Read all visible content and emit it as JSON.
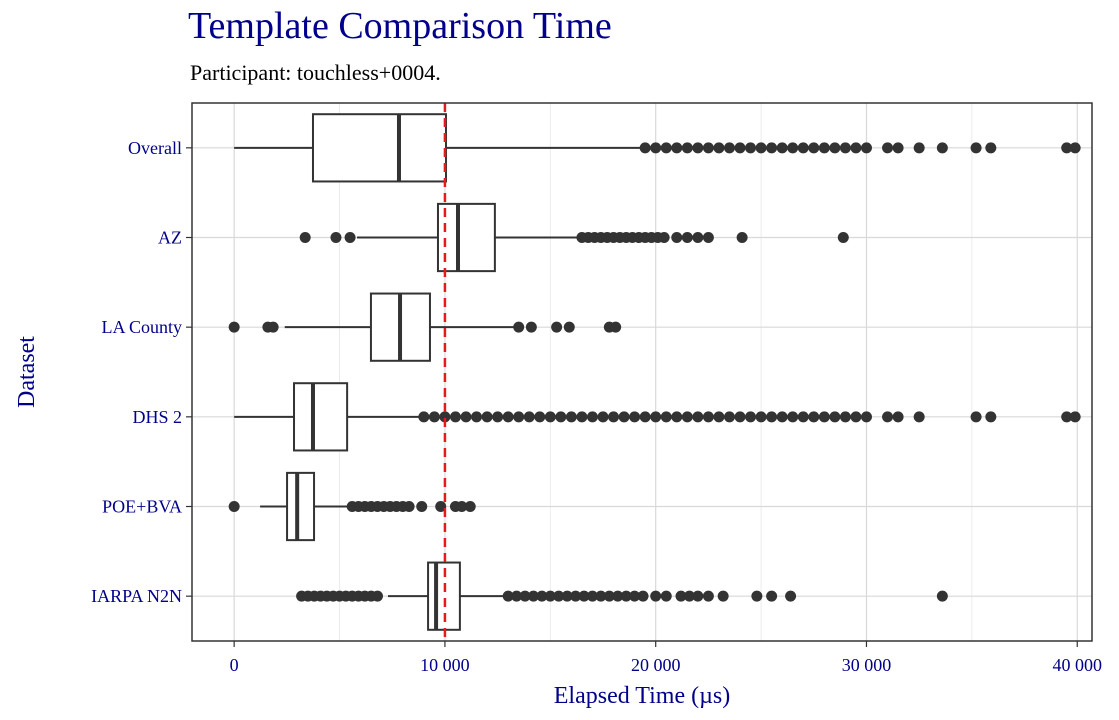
{
  "chart_data": {
    "type": "box",
    "title": "Template Comparison Time",
    "subtitle": "Participant: touchless+0004.",
    "x_label": "Elapsed Time (µs)",
    "y_label": "Dataset",
    "categories": [
      "Overall",
      "AZ",
      "LA County",
      "DHS 2",
      "POE+BVA",
      "IARPA N2N"
    ],
    "boxes": [
      {
        "whisker_low": 0,
        "q1": 3740,
        "median": 7820,
        "q3": 10050,
        "whisker_high": 19400,
        "outliers": [
          19500,
          20000,
          20500,
          21000,
          21500,
          22000,
          22500,
          23000,
          23500,
          24000,
          24500,
          25000,
          25500,
          26000,
          26500,
          27000,
          27500,
          28000,
          28500,
          29000,
          29500,
          30000,
          31000,
          31500,
          32500,
          33600,
          35200,
          35900,
          39500,
          39900
        ]
      },
      {
        "whisker_low": 5830,
        "q1": 9670,
        "median": 10620,
        "q3": 12370,
        "whisker_high": 16400,
        "outliers": [
          3370,
          4830,
          5500,
          16500,
          16800,
          17100,
          17400,
          17700,
          18000,
          18300,
          18600,
          18900,
          19200,
          19500,
          19800,
          20100,
          20400,
          21000,
          21500,
          22000,
          22500,
          24100,
          28900
        ]
      },
      {
        "whisker_low": 2400,
        "q1": 6490,
        "median": 7870,
        "q3": 9290,
        "whisker_high": 13320,
        "outliers": [
          0,
          1600,
          1850,
          13500,
          14100,
          15300,
          15900,
          17800,
          18100
        ]
      },
      {
        "whisker_low": 0,
        "q1": 2840,
        "median": 3740,
        "q3": 5360,
        "whisker_high": 8820,
        "outliers": [
          9000,
          9500,
          10000,
          10500,
          11000,
          11500,
          12000,
          12500,
          13000,
          13500,
          14000,
          14500,
          15000,
          15500,
          16000,
          16500,
          17000,
          17500,
          18000,
          18500,
          19000,
          19500,
          20000,
          20500,
          21000,
          21500,
          22000,
          22500,
          23000,
          23500,
          24000,
          24500,
          25000,
          25500,
          26000,
          26500,
          27000,
          27500,
          28000,
          28500,
          29000,
          29500,
          30000,
          31000,
          31500,
          32500,
          35200,
          35900,
          39500,
          39900
        ]
      },
      {
        "whisker_low": 1230,
        "q1": 2510,
        "median": 2990,
        "q3": 3790,
        "whisker_high": 5400,
        "outliers": [
          0,
          5600,
          5900,
          6200,
          6500,
          6800,
          7100,
          7400,
          7700,
          8000,
          8300,
          8900,
          9800,
          10500,
          10800,
          11200
        ]
      },
      {
        "whisker_low": 7300,
        "q1": 9200,
        "median": 9580,
        "q3": 10710,
        "whisker_high": 12850,
        "outliers": [
          3200,
          3500,
          3800,
          4100,
          4400,
          4700,
          5000,
          5300,
          5600,
          5900,
          6200,
          6500,
          6800,
          13000,
          13400,
          13800,
          14200,
          14600,
          15000,
          15400,
          15800,
          16200,
          16600,
          17000,
          17400,
          17800,
          18200,
          18600,
          19000,
          19400,
          20000,
          20500,
          21200,
          21600,
          22000,
          22500,
          23200,
          24800,
          25500,
          26400,
          33600
        ]
      }
    ],
    "reference_line": {
      "value": 10000,
      "color": "#e41a1c"
    },
    "xlim": [
      -2000,
      40700
    ],
    "xticks": [
      0,
      {
        "value": 10000,
        "label": "10 000"
      },
      {
        "value": 20000,
        "label": "20 000"
      },
      {
        "value": 30000,
        "label": "30 000"
      },
      {
        "value": 40000,
        "label": "40 000"
      }
    ],
    "grid": true,
    "minor_grid": true,
    "box_color": "#333333",
    "outlier_color": "#333333",
    "label_color": "#00008b"
  }
}
